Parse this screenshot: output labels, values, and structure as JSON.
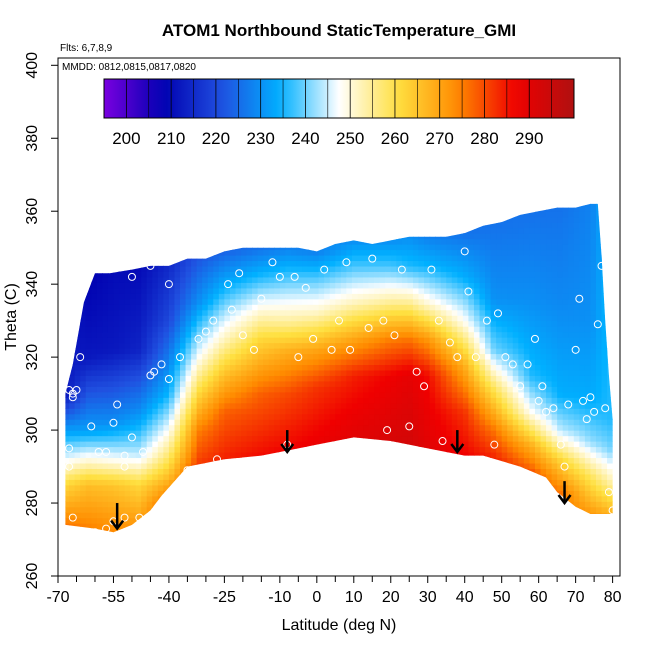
{
  "chart_data": {
    "type": "heatmap",
    "title": "ATOM1 Northbound StaticTemperature_GMI",
    "flights_note": "Flts: 6,7,8,9",
    "dates_note": "MMDD: 0812,0815,0817,0820",
    "xlabel": "Latitude (deg N)",
    "ylabel": "Theta (C)",
    "xlim": [
      -70,
      82
    ],
    "ylim": [
      260,
      402
    ],
    "x_ticks": [
      -70,
      -55,
      -40,
      -25,
      -10,
      0,
      10,
      20,
      30,
      40,
      50,
      60,
      70,
      80
    ],
    "x_tick_labels": [
      "-70",
      "-55",
      "-40",
      "-25",
      "-10",
      "0",
      "10",
      "20",
      "30",
      "40",
      "50",
      "60",
      "70",
      "80"
    ],
    "x_minor_ticks": [
      -65,
      -60,
      -50,
      -45,
      -35,
      -30,
      -20,
      -15,
      -5,
      5,
      15,
      25,
      35,
      45,
      55,
      65,
      75
    ],
    "y_ticks": [
      260,
      280,
      300,
      320,
      340,
      360,
      380,
      400
    ],
    "y_tick_labels": [
      "260",
      "280",
      "300",
      "320",
      "340",
      "360",
      "380",
      "400"
    ],
    "colorbar": {
      "min": 195,
      "max": 300,
      "ticks": [
        200,
        210,
        220,
        230,
        240,
        250,
        260,
        270,
        280,
        290
      ],
      "tick_labels": [
        "200",
        "210",
        "220",
        "230",
        "240",
        "250",
        "260",
        "270",
        "280",
        "290"
      ],
      "colors": [
        "#7a00e0",
        "#0000b0",
        "#2050e0",
        "#00b0ff",
        "#ffffff",
        "#ffe040",
        "#ff8c00",
        "#f00000",
        "#b01010"
      ]
    },
    "upper_boundary": [
      [
        -68,
        310
      ],
      [
        -66,
        318
      ],
      [
        -63,
        335
      ],
      [
        -60,
        343
      ],
      [
        -56,
        343
      ],
      [
        -50,
        344
      ],
      [
        -45,
        345
      ],
      [
        -40,
        345
      ],
      [
        -35,
        347
      ],
      [
        -30,
        347
      ],
      [
        -25,
        349
      ],
      [
        -20,
        350
      ],
      [
        -15,
        350
      ],
      [
        -10,
        350
      ],
      [
        -5,
        350
      ],
      [
        0,
        349
      ],
      [
        5,
        351
      ],
      [
        10,
        352
      ],
      [
        15,
        351
      ],
      [
        20,
        352
      ],
      [
        25,
        353
      ],
      [
        30,
        353
      ],
      [
        35,
        353
      ],
      [
        40,
        354
      ],
      [
        45,
        356
      ],
      [
        50,
        357
      ],
      [
        55,
        359
      ],
      [
        60,
        360
      ],
      [
        65,
        361
      ],
      [
        70,
        361
      ],
      [
        74,
        362
      ],
      [
        76,
        362
      ],
      [
        77,
        348
      ],
      [
        78,
        330
      ],
      [
        79,
        315
      ],
      [
        80,
        303
      ],
      [
        80,
        278
      ]
    ],
    "lower_boundary": [
      [
        -68,
        274
      ],
      [
        -60,
        273
      ],
      [
        -55,
        272
      ],
      [
        -50,
        274
      ],
      [
        -45,
        278
      ],
      [
        -42,
        282
      ],
      [
        -35,
        290
      ],
      [
        -25,
        292
      ],
      [
        -15,
        293
      ],
      [
        -5,
        295
      ],
      [
        0,
        296
      ],
      [
        10,
        298
      ],
      [
        20,
        297
      ],
      [
        30,
        295
      ],
      [
        40,
        293
      ],
      [
        45,
        293
      ],
      [
        55,
        290
      ],
      [
        62,
        287
      ],
      [
        65,
        283
      ],
      [
        70,
        279
      ],
      [
        74,
        277
      ],
      [
        80,
        277
      ]
    ],
    "temperature_field": [
      {
        "lat": -68,
        "levels": [
          [
            274,
            276
          ],
          [
            285,
            262
          ],
          [
            293,
            245
          ],
          [
            302,
            228
          ],
          [
            310,
            212
          ]
        ]
      },
      {
        "lat": -62,
        "levels": [
          [
            273,
            275
          ],
          [
            285,
            266
          ],
          [
            291,
            252
          ],
          [
            300,
            232
          ],
          [
            320,
            212
          ],
          [
            343,
            208
          ]
        ]
      },
      {
        "lat": -55,
        "levels": [
          [
            272,
            274
          ],
          [
            285,
            265
          ],
          [
            292,
            248
          ],
          [
            302,
            230
          ],
          [
            322,
            212
          ],
          [
            343,
            210
          ]
        ]
      },
      {
        "lat": -48,
        "levels": [
          [
            274,
            272
          ],
          [
            285,
            262
          ],
          [
            293,
            245
          ],
          [
            305,
            230
          ],
          [
            322,
            214
          ],
          [
            344,
            210
          ]
        ]
      },
      {
        "lat": -40,
        "levels": [
          [
            280,
            278
          ],
          [
            290,
            262
          ],
          [
            300,
            248
          ],
          [
            310,
            235
          ],
          [
            330,
            220
          ],
          [
            345,
            215
          ]
        ]
      },
      {
        "lat": -32,
        "levels": [
          [
            290,
            282
          ],
          [
            300,
            275
          ],
          [
            310,
            262
          ],
          [
            320,
            248
          ],
          [
            335,
            230
          ],
          [
            347,
            222
          ]
        ]
      },
      {
        "lat": -25,
        "levels": [
          [
            292,
            284
          ],
          [
            305,
            278
          ],
          [
            315,
            266
          ],
          [
            325,
            252
          ],
          [
            338,
            236
          ],
          [
            349,
            224
          ]
        ]
      },
      {
        "lat": -15,
        "levels": [
          [
            293,
            286
          ],
          [
            310,
            278
          ],
          [
            325,
            262
          ],
          [
            333,
            250
          ],
          [
            342,
            236
          ],
          [
            350,
            226
          ]
        ]
      },
      {
        "lat": -8,
        "levels": [
          [
            294,
            287
          ],
          [
            310,
            280
          ],
          [
            322,
            268
          ],
          [
            330,
            254
          ],
          [
            342,
            238
          ],
          [
            350,
            228
          ]
        ]
      },
      {
        "lat": 0,
        "levels": [
          [
            296,
            288
          ],
          [
            312,
            282
          ],
          [
            322,
            270
          ],
          [
            332,
            252
          ],
          [
            342,
            238
          ],
          [
            349,
            228
          ]
        ]
      },
      {
        "lat": 10,
        "levels": [
          [
            298,
            290
          ],
          [
            315,
            284
          ],
          [
            325,
            270
          ],
          [
            335,
            252
          ],
          [
            345,
            238
          ],
          [
            352,
            230
          ]
        ]
      },
      {
        "lat": 20,
        "levels": [
          [
            297,
            292
          ],
          [
            315,
            287
          ],
          [
            325,
            275
          ],
          [
            335,
            255
          ],
          [
            345,
            238
          ],
          [
            352,
            230
          ]
        ]
      },
      {
        "lat": 25,
        "levels": [
          [
            296,
            293
          ],
          [
            315,
            289
          ],
          [
            325,
            276
          ],
          [
            335,
            255
          ],
          [
            345,
            236
          ],
          [
            353,
            230
          ]
        ]
      },
      {
        "lat": 30,
        "levels": [
          [
            295,
            290
          ],
          [
            315,
            286
          ],
          [
            325,
            272
          ],
          [
            335,
            250
          ],
          [
            345,
            235
          ],
          [
            353,
            228
          ]
        ]
      },
      {
        "lat": 40,
        "levels": [
          [
            293,
            287
          ],
          [
            305,
            282
          ],
          [
            318,
            268
          ],
          [
            330,
            248
          ],
          [
            342,
            234
          ],
          [
            354,
            226
          ]
        ]
      },
      {
        "lat": 48,
        "levels": [
          [
            292,
            284
          ],
          [
            300,
            276
          ],
          [
            312,
            258
          ],
          [
            322,
            240
          ],
          [
            336,
            230
          ],
          [
            356,
            226
          ]
        ]
      },
      {
        "lat": 58,
        "levels": [
          [
            288,
            280
          ],
          [
            296,
            268
          ],
          [
            305,
            248
          ],
          [
            315,
            236
          ],
          [
            335,
            230
          ],
          [
            359,
            226
          ]
        ]
      },
      {
        "lat": 66,
        "levels": [
          [
            283,
            276
          ],
          [
            292,
            262
          ],
          [
            300,
            244
          ],
          [
            310,
            234
          ],
          [
            335,
            229
          ],
          [
            361,
            226
          ]
        ]
      },
      {
        "lat": 74,
        "levels": [
          [
            277,
            272
          ],
          [
            288,
            258
          ],
          [
            297,
            242
          ],
          [
            308,
            234
          ],
          [
            330,
            230
          ],
          [
            362,
            228
          ]
        ]
      },
      {
        "lat": 80,
        "levels": [
          [
            277,
            268
          ],
          [
            285,
            254
          ],
          [
            295,
            240
          ],
          [
            303,
            236
          ]
        ]
      }
    ],
    "sample_points": [
      [
        -66,
        309
      ],
      [
        -66,
        310
      ],
      [
        -67,
        311
      ],
      [
        -65,
        311
      ],
      [
        -64,
        320
      ],
      [
        -62,
        343
      ],
      [
        -67,
        295
      ],
      [
        -67,
        290
      ],
      [
        -61,
        301
      ],
      [
        -59,
        294
      ],
      [
        -57,
        294
      ],
      [
        -55,
        302
      ],
      [
        -54,
        307
      ],
      [
        -52,
        293
      ],
      [
        -52,
        290
      ],
      [
        -50,
        298
      ],
      [
        -47,
        294
      ],
      [
        -45,
        315
      ],
      [
        -44,
        316
      ],
      [
        -42,
        318
      ],
      [
        -40,
        314
      ],
      [
        -37,
        320
      ],
      [
        -35,
        289
      ],
      [
        -32,
        325
      ],
      [
        -30,
        327
      ],
      [
        -28,
        330
      ],
      [
        -27,
        292
      ],
      [
        -24,
        340
      ],
      [
        -23,
        333
      ],
      [
        -21,
        343
      ],
      [
        -20,
        326
      ],
      [
        -17,
        322
      ],
      [
        -15,
        336
      ],
      [
        -12,
        346
      ],
      [
        -10,
        342
      ],
      [
        -8,
        296
      ],
      [
        -6,
        342
      ],
      [
        -5,
        320
      ],
      [
        -3,
        339
      ],
      [
        -1,
        325
      ],
      [
        2,
        344
      ],
      [
        4,
        322
      ],
      [
        6,
        330
      ],
      [
        8,
        346
      ],
      [
        9,
        322
      ],
      [
        11,
        296
      ],
      [
        14,
        328
      ],
      [
        15,
        347
      ],
      [
        18,
        330
      ],
      [
        19,
        300
      ],
      [
        21,
        326
      ],
      [
        23,
        344
      ],
      [
        25,
        301
      ],
      [
        27,
        316
      ],
      [
        29,
        312
      ],
      [
        31,
        344
      ],
      [
        33,
        330
      ],
      [
        34,
        297
      ],
      [
        36,
        324
      ],
      [
        38,
        320
      ],
      [
        40,
        349
      ],
      [
        41,
        338
      ],
      [
        43,
        320
      ],
      [
        46,
        330
      ],
      [
        48,
        296
      ],
      [
        49,
        332
      ],
      [
        51,
        320
      ],
      [
        53,
        318
      ],
      [
        55,
        312
      ],
      [
        57,
        318
      ],
      [
        59,
        325
      ],
      [
        61,
        312
      ],
      [
        64,
        306
      ],
      [
        66,
        296
      ],
      [
        67,
        290
      ],
      [
        68,
        307
      ],
      [
        70,
        322
      ],
      [
        71,
        336
      ],
      [
        72,
        308
      ],
      [
        73,
        303
      ],
      [
        74,
        309
      ],
      [
        75,
        305
      ],
      [
        76,
        329
      ],
      [
        77,
        345
      ],
      [
        78,
        306
      ],
      [
        79,
        283
      ],
      [
        80,
        278
      ],
      [
        60,
        308
      ],
      [
        62,
        305
      ],
      [
        -66,
        276
      ],
      [
        -60,
        272
      ],
      [
        -57,
        273
      ],
      [
        -52,
        276
      ],
      [
        -48,
        276
      ],
      [
        -55,
        275
      ],
      [
        -45,
        345
      ],
      [
        -40,
        340
      ],
      [
        -50,
        342
      ]
    ],
    "arrows": [
      {
        "lat": -54,
        "theta_top": 280,
        "theta_bottom": 273
      },
      {
        "lat": -8,
        "theta_top": 300,
        "theta_bottom": 294
      },
      {
        "lat": 38,
        "theta_top": 300,
        "theta_bottom": 294
      },
      {
        "lat": 67,
        "theta_top": 286,
        "theta_bottom": 280
      }
    ]
  }
}
